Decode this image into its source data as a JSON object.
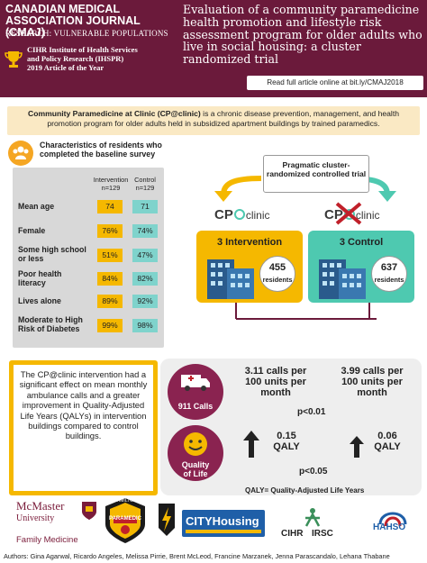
{
  "header": {
    "journal": "CANADIAN MEDICAL ASSOCIATION JOURNAL (CMAJ)",
    "research": "RESEARCH: VULNERABLE POPULATIONS",
    "award_line1": "CIHR Institute of Health Services",
    "award_line2": "and Policy Research (IHSPR)",
    "award_line3": "2019 Article of the Year",
    "title": "Evaluation of a community paramedicine health promotion and lifestyle risk assessment program for older adults who live in social housing: a cluster randomized trial",
    "read_more": "Read full article online at bit.ly/CMAJ2018"
  },
  "intro": {
    "bold": "Community Paramedicine at Clinic (CP@clinic)",
    "text": " is a chronic disease prevention, management, and health promotion program for older adults held in subsidized apartment buildings by trained paramedics."
  },
  "characteristics": {
    "title": "Characteristics of residents who completed the baseline survey",
    "col_intervention": "Intervention",
    "col_intervention_n": "n=129",
    "col_control": "Control",
    "col_control_n": "n=129",
    "rows": [
      {
        "label": "Mean age",
        "intervention": "74",
        "control": "71"
      },
      {
        "label": "Female",
        "intervention": "76%",
        "control": "74%"
      },
      {
        "label": "Some high school or less",
        "intervention": "51%",
        "control": "47%"
      },
      {
        "label": "Poor health literacy",
        "intervention": "84%",
        "control": "82%"
      },
      {
        "label": "Lives alone",
        "intervention": "89%",
        "control": "92%"
      },
      {
        "label": "Moderate to High Risk of Diabetes",
        "intervention": "99%",
        "control": "98%"
      }
    ]
  },
  "design": {
    "pragmatic": "Pragmatic cluster-randomized controlled trial",
    "cp_clinic": "CP@clinic",
    "cp_label": "CP",
    "clinic_label": "clinic",
    "intervention_label": "3 Intervention",
    "control_label": "3 Control",
    "intervention_count": "455",
    "control_count": "637",
    "residents": "residents"
  },
  "conclusion": "The CP@clinic intervention had a significant effect on mean monthly ambulance calls and a greater improvement in Quality-Adjusted Life Years (QALYs) in intervention buildings compared to control buildings.",
  "results": {
    "calls_label": "911 Calls",
    "qol_label_1": "Quality",
    "qol_label_2": "of Life",
    "int_calls": "3.11 calls per 100 units per month",
    "ctl_calls": "3.99 calls per 100 units per month",
    "p_calls": "p<0.01",
    "int_qaly_value": "0.15",
    "int_qaly_unit": "QALY",
    "ctl_qaly_value": "0.06",
    "ctl_qaly_unit": "QALY",
    "p_qaly": "p<0.05",
    "qaly_def": "QALY= Quality-Adjusted Life Years"
  },
  "logos": {
    "mcmaster": "McMaster",
    "university": "University",
    "family_medicine": "Family Medicine",
    "paramedic": "PARAMEDIC",
    "hamilton": "HAMILTON",
    "city_housing": "CITYHousing",
    "cihr": "CIHR",
    "irsc": "IRSC",
    "hahso": "HAHSO"
  },
  "authors": "Authors: Gina Agarwal, Ricardo Angeles, Melissa Pirrie, Brent McLeod, Francine Marzanek, Jenna Parascandalo, Lehana Thabane",
  "colors": {
    "plum": "#6b1a3b",
    "gold": "#f5b800",
    "teal": "#4ec9b0",
    "grey_panel": "#d8d8d8"
  }
}
